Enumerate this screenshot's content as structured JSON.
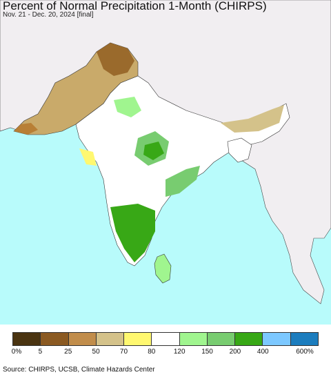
{
  "title": "Percent of Normal Precipitation 1-Month (CHIRPS)",
  "subtitle": "Nov. 21 - Dec. 20, 2024 [final]",
  "source": "Source: CHIRPS, UCSB, Climate Hazards Center",
  "legend": {
    "colors": [
      "#4a3411",
      "#8b5a22",
      "#c18d4b",
      "#d4c28a",
      "#fff870",
      "#ffffff",
      "#a0f58f",
      "#78cc70",
      "#38a816",
      "#7cc8ff",
      "#1c7dbe"
    ],
    "ticks": [
      "0%",
      "5",
      "25",
      "50",
      "70",
      "80",
      "120",
      "150",
      "200",
      "400",
      "600%"
    ]
  },
  "colors": {
    "ocean": "#b8fbfb",
    "land_outside": "#f1eef1",
    "border": "#333333"
  }
}
